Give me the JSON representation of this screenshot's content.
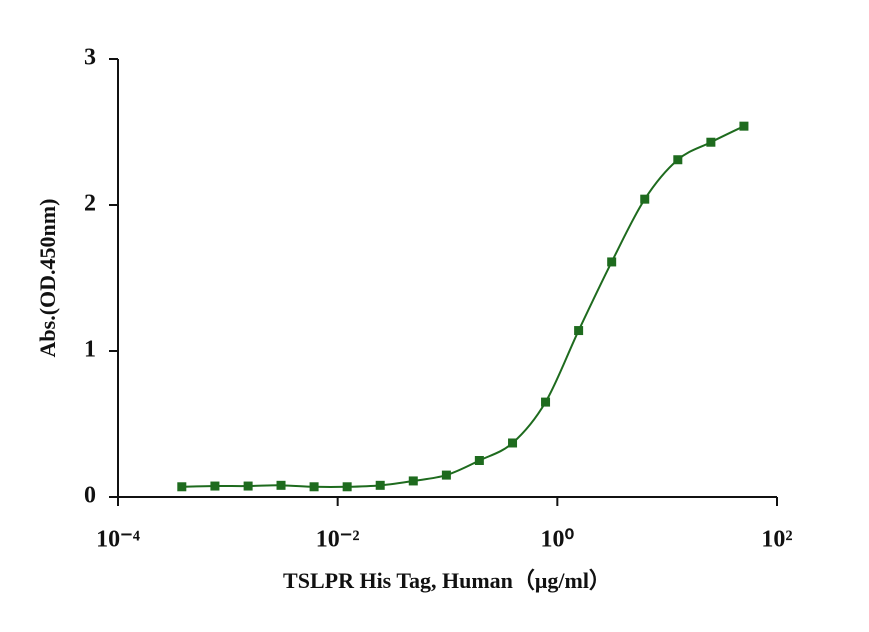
{
  "chart_data": {
    "type": "scatter",
    "xlabel": "TSLPR His Tag, Human（μg/ml）",
    "ylabel": "Abs.(OD.450nm)",
    "xscale": "log",
    "xlim": [
      0.0001,
      100
    ],
    "xticks": [
      {
        "value": 0.0001,
        "label": "10⁻⁴"
      },
      {
        "value": 0.01,
        "label": "10⁻²"
      },
      {
        "value": 1,
        "label": "10⁰"
      },
      {
        "value": 100,
        "label": "10²"
      }
    ],
    "ylim": [
      0,
      3
    ],
    "yticks": [
      0,
      1,
      2,
      3
    ],
    "series": [
      {
        "color": "#1e6b1e",
        "x": [
          0.000381,
          0.000763,
          0.00153,
          0.00305,
          0.0061,
          0.0122,
          0.0244,
          0.0488,
          0.0977,
          0.195,
          0.391,
          0.781,
          1.5625,
          3.125,
          6.25,
          12.5,
          25,
          50
        ],
        "values": [
          0.07,
          0.075,
          0.075,
          0.08,
          0.07,
          0.07,
          0.08,
          0.11,
          0.15,
          0.25,
          0.37,
          0.65,
          1.14,
          1.61,
          2.04,
          2.31,
          2.43,
          2.54
        ]
      }
    ]
  }
}
